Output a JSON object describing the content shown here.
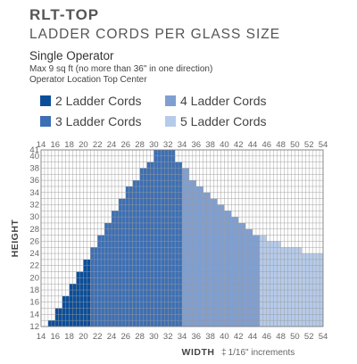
{
  "header": {
    "title": "RLT-TOP",
    "subtitle": "LADDER CORDS PER GLASS SIZE",
    "operator": "Single Operator",
    "note_line1": "Max 9 sq ft (no more than 36\" in one direction)",
    "note_line2": "Operator Location Top Center"
  },
  "colors": {
    "c2": "#0a4e9b",
    "c3": "#3c6fb5",
    "c4": "#7f9fd2",
    "c5": "#b6cbea",
    "grid": "#9a9a9a"
  },
  "legend": [
    {
      "label": "2 Ladder Cords",
      "color": "#0a4e9b"
    },
    {
      "label": "3 Ladder Cords",
      "color": "#3c6fb5"
    },
    {
      "label": "4 Ladder Cords",
      "color": "#7f9fd2"
    },
    {
      "label": "5 Ladder Cords",
      "color": "#b6cbea"
    }
  ],
  "chart_data": {
    "type": "heatmap",
    "xlabel": "WIDTH",
    "ylabel": "HEIGHT",
    "x_ticks": [
      14,
      16,
      18,
      20,
      22,
      24,
      26,
      28,
      30,
      32,
      34,
      36,
      38,
      40,
      42,
      44,
      46,
      48,
      50,
      52,
      54
    ],
    "y_ticks": [
      12,
      14,
      16,
      18,
      20,
      22,
      24,
      26,
      28,
      30,
      32,
      34,
      36,
      38,
      40
    ],
    "y_top_label": "41",
    "xlim": [
      14,
      54
    ],
    "ylim": [
      12,
      41
    ],
    "unit_note": "1/16\" increments",
    "width_bands": [
      {
        "from": 14,
        "to": 21,
        "ladder_cords": 2
      },
      {
        "from": 21,
        "to": 34,
        "ladder_cords": 3
      },
      {
        "from": 34,
        "to": 45,
        "ladder_cords": 4
      },
      {
        "from": 45,
        "to": 54,
        "ladder_cords": 5
      }
    ],
    "max_height_by_width": [
      {
        "width": 15,
        "max_height": 12
      },
      {
        "width": 16,
        "max_height": 13
      },
      {
        "width": 17,
        "max_height": 15
      },
      {
        "width": 18,
        "max_height": 17
      },
      {
        "width": 19,
        "max_height": 19
      },
      {
        "width": 20,
        "max_height": 21
      },
      {
        "width": 21,
        "max_height": 23
      },
      {
        "width": 22,
        "max_height": 25
      },
      {
        "width": 23,
        "max_height": 27
      },
      {
        "width": 24,
        "max_height": 29
      },
      {
        "width": 25,
        "max_height": 31
      },
      {
        "width": 26,
        "max_height": 33
      },
      {
        "width": 27,
        "max_height": 35
      },
      {
        "width": 28,
        "max_height": 36
      },
      {
        "width": 29,
        "max_height": 38
      },
      {
        "width": 30,
        "max_height": 39
      },
      {
        "width": 31,
        "max_height": 41
      },
      {
        "width": 32,
        "max_height": 41
      },
      {
        "width": 33,
        "max_height": 41
      },
      {
        "width": 34,
        "max_height": 39
      },
      {
        "width": 35,
        "max_height": 38
      },
      {
        "width": 36,
        "max_height": 36
      },
      {
        "width": 37,
        "max_height": 35
      },
      {
        "width": 38,
        "max_height": 34
      },
      {
        "width": 39,
        "max_height": 33
      },
      {
        "width": 40,
        "max_height": 32
      },
      {
        "width": 41,
        "max_height": 31
      },
      {
        "width": 42,
        "max_height": 30
      },
      {
        "width": 43,
        "max_height": 29
      },
      {
        "width": 44,
        "max_height": 28
      },
      {
        "width": 45,
        "max_height": 27
      },
      {
        "width": 46,
        "max_height": 27
      },
      {
        "width": 47,
        "max_height": 26
      },
      {
        "width": 48,
        "max_height": 26
      },
      {
        "width": 49,
        "max_height": 25
      },
      {
        "width": 50,
        "max_height": 25
      },
      {
        "width": 51,
        "max_height": 25
      },
      {
        "width": 52,
        "max_height": 24
      },
      {
        "width": 53,
        "max_height": 24
      },
      {
        "width": 54,
        "max_height": 24
      }
    ]
  }
}
